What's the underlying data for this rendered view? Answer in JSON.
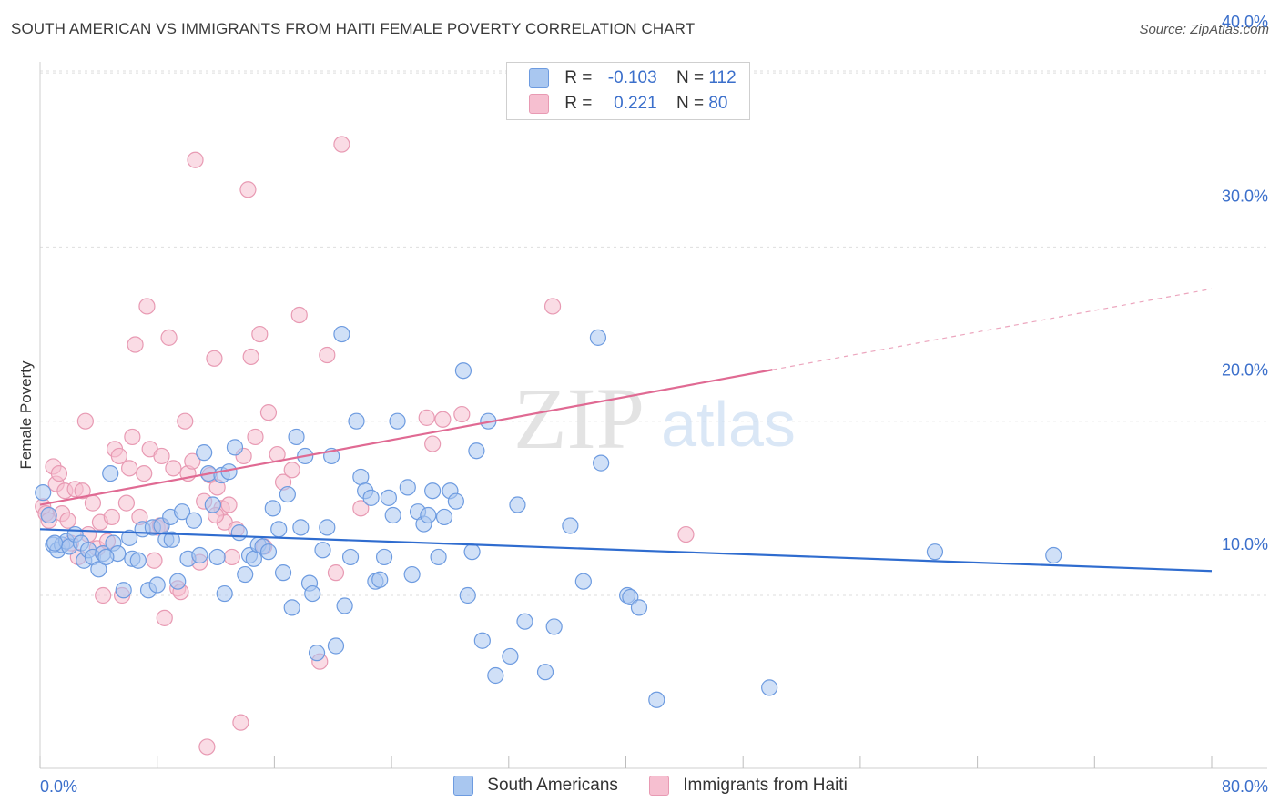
{
  "title": "SOUTH AMERICAN VS IMMIGRANTS FROM HAITI FEMALE POVERTY CORRELATION CHART",
  "source": "Source: ZipAtlas.com",
  "watermark": {
    "zip": "ZIP",
    "atlas": "atlas"
  },
  "colors": {
    "blue_fill": "#a9c7f0",
    "blue_stroke": "#6d9be0",
    "blue_line": "#2f6ccf",
    "pink_fill": "#f6bfd0",
    "pink_stroke": "#e89ab3",
    "pink_line": "#e06a93",
    "axis_text": "#3b6fcb"
  },
  "legend": {
    "rows": [
      {
        "r_label": "R =",
        "r_value": "-0.103",
        "n_label": "N =",
        "n_value": "112"
      },
      {
        "r_label": "R =",
        "r_value": "0.221",
        "n_label": "N =",
        "n_value": "80"
      }
    ]
  },
  "bottom_legend": {
    "south": "South Americans",
    "haiti": "Immigrants from Haiti"
  },
  "chart_data": {
    "type": "scatter",
    "title": "SOUTH AMERICAN VS IMMIGRANTS FROM HAITI FEMALE POVERTY CORRELATION CHART",
    "xlabel": "",
    "ylabel": "Female Poverty",
    "xlim": [
      0,
      80
    ],
    "ylim": [
      0,
      42
    ],
    "x_tick_labels": [
      "0.0%",
      "80.0%"
    ],
    "y_ticks": [
      10,
      20,
      30,
      40
    ],
    "y_tick_labels": [
      "10.0%",
      "20.0%",
      "30.0%",
      "40.0%"
    ],
    "grid": true,
    "legend_position": "top-center",
    "series": [
      {
        "name": "South Americans",
        "r": -0.103,
        "n": 112,
        "trend": {
          "x": [
            0,
            80
          ],
          "y": [
            13.8,
            11.4
          ],
          "dashed_from": null
        },
        "points": [
          [
            0.2,
            15.9
          ],
          [
            0.6,
            14.6
          ],
          [
            0.9,
            12.9
          ],
          [
            1.2,
            12.6
          ],
          [
            1.5,
            12.9
          ],
          [
            1.8,
            13.1
          ],
          [
            2.0,
            12.8
          ],
          [
            2.4,
            13.5
          ],
          [
            2.8,
            13.0
          ],
          [
            3.0,
            12.0
          ],
          [
            3.3,
            12.6
          ],
          [
            3.6,
            12.2
          ],
          [
            4.0,
            11.5
          ],
          [
            4.3,
            12.4
          ],
          [
            4.8,
            17.0
          ],
          [
            5.0,
            13.0
          ],
          [
            5.3,
            12.4
          ],
          [
            5.7,
            10.3
          ],
          [
            6.1,
            13.3
          ],
          [
            6.3,
            12.1
          ],
          [
            6.7,
            12.0
          ],
          [
            7.0,
            13.8
          ],
          [
            7.4,
            10.3
          ],
          [
            7.7,
            13.9
          ],
          [
            8.0,
            10.6
          ],
          [
            8.3,
            14.0
          ],
          [
            8.6,
            13.2
          ],
          [
            8.9,
            14.5
          ],
          [
            9.4,
            10.8
          ],
          [
            9.7,
            14.8
          ],
          [
            10.1,
            12.1
          ],
          [
            10.5,
            14.3
          ],
          [
            10.9,
            12.3
          ],
          [
            11.2,
            18.2
          ],
          [
            11.5,
            17.0
          ],
          [
            11.8,
            15.2
          ],
          [
            12.1,
            12.2
          ],
          [
            12.4,
            16.9
          ],
          [
            12.6,
            10.1
          ],
          [
            12.9,
            17.1
          ],
          [
            13.3,
            18.5
          ],
          [
            13.6,
            13.6
          ],
          [
            14.0,
            11.2
          ],
          [
            14.3,
            12.3
          ],
          [
            14.6,
            12.1
          ],
          [
            14.9,
            12.9
          ],
          [
            15.2,
            12.8
          ],
          [
            15.6,
            12.5
          ],
          [
            15.9,
            15.0
          ],
          [
            16.3,
            13.8
          ],
          [
            16.6,
            11.3
          ],
          [
            16.9,
            15.8
          ],
          [
            17.2,
            9.3
          ],
          [
            17.5,
            19.1
          ],
          [
            17.8,
            13.9
          ],
          [
            18.1,
            18.0
          ],
          [
            18.4,
            10.7
          ],
          [
            18.6,
            10.1
          ],
          [
            18.9,
            6.7
          ],
          [
            19.3,
            12.6
          ],
          [
            19.6,
            13.9
          ],
          [
            19.9,
            18.0
          ],
          [
            20.2,
            7.1
          ],
          [
            20.6,
            25.0
          ],
          [
            20.8,
            9.4
          ],
          [
            21.2,
            12.2
          ],
          [
            21.6,
            20.0
          ],
          [
            21.9,
            16.8
          ],
          [
            22.2,
            16.0
          ],
          [
            22.6,
            15.6
          ],
          [
            22.9,
            10.8
          ],
          [
            23.2,
            10.9
          ],
          [
            23.5,
            12.2
          ],
          [
            23.8,
            15.6
          ],
          [
            24.1,
            14.6
          ],
          [
            24.4,
            20.0
          ],
          [
            25.1,
            16.2
          ],
          [
            25.4,
            11.2
          ],
          [
            25.8,
            14.8
          ],
          [
            26.2,
            14.1
          ],
          [
            26.5,
            14.6
          ],
          [
            26.8,
            16.0
          ],
          [
            27.2,
            12.2
          ],
          [
            27.6,
            14.5
          ],
          [
            28.0,
            16.0
          ],
          [
            28.4,
            15.4
          ],
          [
            28.9,
            22.9
          ],
          [
            29.2,
            10.0
          ],
          [
            29.5,
            12.5
          ],
          [
            29.8,
            18.3
          ],
          [
            30.2,
            7.4
          ],
          [
            30.6,
            20.0
          ],
          [
            31.1,
            5.4
          ],
          [
            32.1,
            6.5
          ],
          [
            32.6,
            15.2
          ],
          [
            33.1,
            8.5
          ],
          [
            34.5,
            5.6
          ],
          [
            35.1,
            8.2
          ],
          [
            36.2,
            14.0
          ],
          [
            37.1,
            10.8
          ],
          [
            38.1,
            24.8
          ],
          [
            38.3,
            17.6
          ],
          [
            40.1,
            10.0
          ],
          [
            40.3,
            9.9
          ],
          [
            40.9,
            9.3
          ],
          [
            42.1,
            4.0
          ],
          [
            49.8,
            4.7
          ],
          [
            61.1,
            12.5
          ],
          [
            69.2,
            12.3
          ],
          [
            1.0,
            13.0
          ],
          [
            4.5,
            12.2
          ],
          [
            9.0,
            13.2
          ]
        ]
      },
      {
        "name": "Immigrants from Haiti",
        "r": 0.221,
        "n": 80,
        "trend": {
          "x": [
            0,
            80
          ],
          "y": [
            15.2,
            27.6
          ],
          "dashed_from": 50
        },
        "points": [
          [
            0.2,
            15.1
          ],
          [
            0.4,
            14.7
          ],
          [
            0.6,
            14.3
          ],
          [
            0.9,
            17.4
          ],
          [
            1.1,
            16.4
          ],
          [
            1.3,
            17.0
          ],
          [
            1.5,
            14.7
          ],
          [
            1.7,
            16.0
          ],
          [
            1.9,
            14.3
          ],
          [
            2.1,
            13.0
          ],
          [
            2.4,
            16.1
          ],
          [
            2.6,
            12.2
          ],
          [
            2.9,
            16.0
          ],
          [
            3.1,
            20.0
          ],
          [
            3.3,
            13.5
          ],
          [
            3.6,
            15.3
          ],
          [
            3.9,
            12.7
          ],
          [
            4.1,
            14.2
          ],
          [
            4.3,
            10.0
          ],
          [
            4.6,
            13.1
          ],
          [
            4.9,
            14.5
          ],
          [
            5.1,
            18.4
          ],
          [
            5.4,
            18.0
          ],
          [
            5.6,
            10.0
          ],
          [
            5.9,
            15.3
          ],
          [
            6.1,
            17.3
          ],
          [
            6.3,
            19.1
          ],
          [
            6.5,
            24.4
          ],
          [
            6.8,
            14.5
          ],
          [
            7.1,
            17.0
          ],
          [
            7.3,
            26.6
          ],
          [
            7.5,
            18.4
          ],
          [
            7.8,
            12.0
          ],
          [
            8.0,
            13.9
          ],
          [
            8.3,
            18.0
          ],
          [
            8.5,
            8.7
          ],
          [
            8.8,
            24.8
          ],
          [
            9.1,
            17.3
          ],
          [
            9.4,
            10.4
          ],
          [
            9.6,
            10.2
          ],
          [
            9.9,
            20.0
          ],
          [
            10.1,
            17.0
          ],
          [
            10.4,
            17.7
          ],
          [
            10.6,
            35.0
          ],
          [
            10.9,
            11.9
          ],
          [
            11.2,
            15.4
          ],
          [
            11.4,
            1.3
          ],
          [
            11.6,
            16.9
          ],
          [
            11.9,
            23.6
          ],
          [
            12.1,
            16.2
          ],
          [
            12.4,
            15.0
          ],
          [
            12.6,
            14.2
          ],
          [
            12.9,
            15.2
          ],
          [
            13.1,
            12.2
          ],
          [
            13.4,
            13.8
          ],
          [
            13.7,
            2.7
          ],
          [
            13.9,
            18.0
          ],
          [
            14.2,
            33.3
          ],
          [
            14.4,
            23.7
          ],
          [
            14.7,
            19.1
          ],
          [
            15.0,
            25.0
          ],
          [
            15.3,
            12.8
          ],
          [
            15.6,
            20.5
          ],
          [
            16.2,
            18.1
          ],
          [
            16.6,
            16.5
          ],
          [
            17.2,
            17.2
          ],
          [
            17.7,
            26.1
          ],
          [
            19.1,
            6.2
          ],
          [
            19.6,
            23.8
          ],
          [
            20.2,
            11.3
          ],
          [
            20.6,
            35.9
          ],
          [
            21.9,
            15.0
          ],
          [
            26.4,
            20.2
          ],
          [
            26.8,
            18.7
          ],
          [
            27.5,
            20.1
          ],
          [
            28.8,
            20.4
          ],
          [
            35.0,
            26.6
          ],
          [
            44.1,
            13.5
          ],
          [
            8.2,
            14.0
          ],
          [
            12.0,
            14.6
          ]
        ]
      }
    ]
  }
}
